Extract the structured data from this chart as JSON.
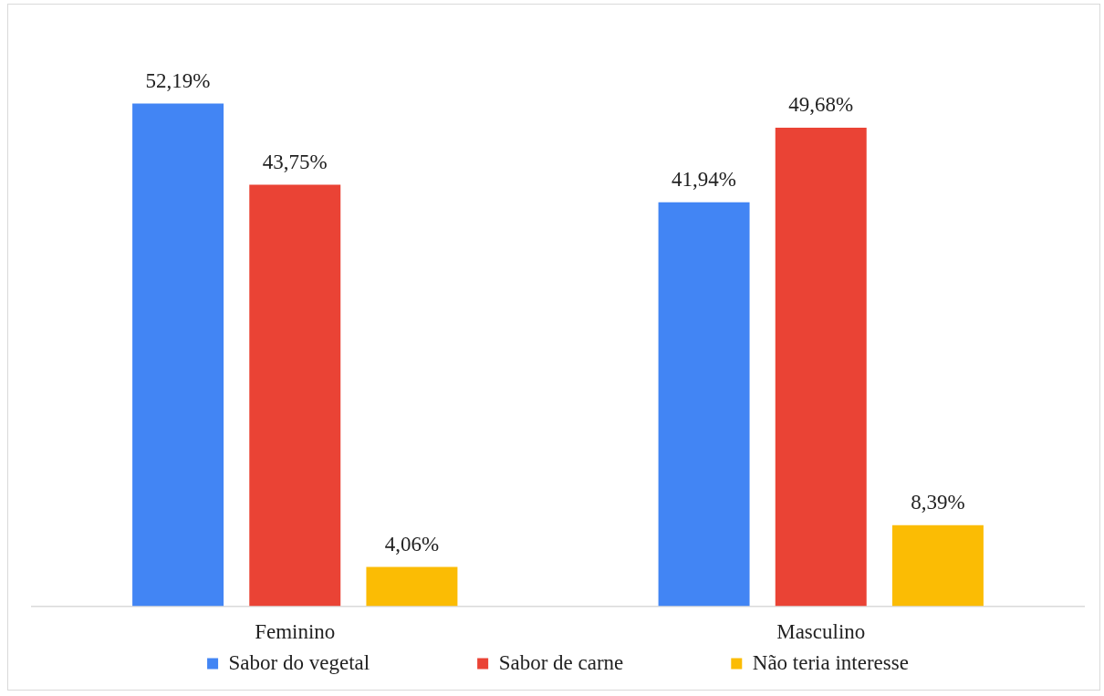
{
  "chart_data": {
    "type": "bar",
    "categories": [
      "Feminino",
      "Masculino"
    ],
    "series": [
      {
        "name": "Sabor do vegetal",
        "color": "#4285f4",
        "values": [
          52.19,
          41.94
        ],
        "value_labels": [
          "52,19%",
          "41,94%"
        ]
      },
      {
        "name": "Sabor de carne",
        "color": "#ea4335",
        "values": [
          43.75,
          49.68
        ],
        "value_labels": [
          "43,75%",
          "49,68%"
        ]
      },
      {
        "name": "Não teria interesse",
        "color": "#fbbc04",
        "values": [
          4.06,
          8.39
        ],
        "value_labels": [
          "4,06%",
          "8,39%"
        ]
      }
    ],
    "legend": "bottom",
    "grid": false,
    "tick_labels": "x"
  }
}
